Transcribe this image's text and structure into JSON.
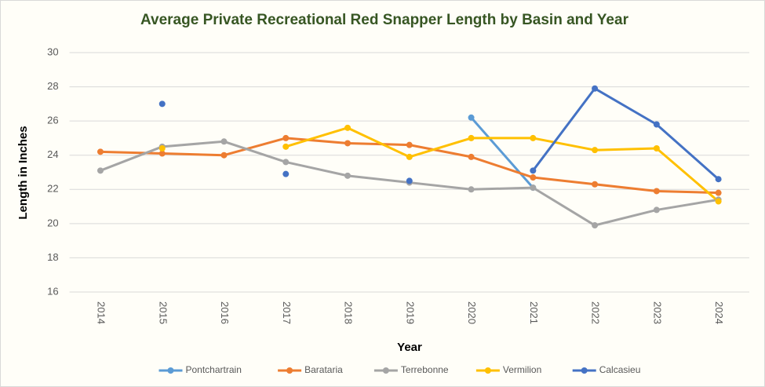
{
  "chart_data": {
    "type": "line",
    "title": "Average Private Recreational Red Snapper Length by Basin and Year",
    "xlabel": "Year",
    "ylabel": "Length in Inches",
    "categories": [
      "2014",
      "2015",
      "2016",
      "2017",
      "2018",
      "2019",
      "2020",
      "2021",
      "2022",
      "2023",
      "2024"
    ],
    "series": [
      {
        "name": "Pontchartrain",
        "color": "#5b9bd5",
        "values": [
          null,
          null,
          null,
          null,
          null,
          null,
          26.2,
          22.1,
          null,
          null,
          null
        ]
      },
      {
        "name": "Barataria",
        "color": "#ed7d31",
        "values": [
          24.2,
          24.1,
          24.0,
          25.0,
          24.7,
          24.6,
          23.9,
          22.7,
          22.3,
          21.9,
          21.8
        ]
      },
      {
        "name": "Terrebonne",
        "color": "#a5a5a5",
        "values": [
          23.1,
          24.5,
          24.8,
          23.6,
          22.8,
          22.4,
          22.0,
          22.1,
          19.9,
          20.8,
          21.4
        ]
      },
      {
        "name": "Vermilion",
        "color": "#ffc000",
        "values": [
          null,
          24.4,
          null,
          24.5,
          25.6,
          23.9,
          25.0,
          25.0,
          24.3,
          24.4,
          21.3
        ]
      },
      {
        "name": "Calcasieu",
        "color": "#4472c4",
        "values": [
          null,
          27.0,
          null,
          22.9,
          null,
          22.5,
          null,
          23.1,
          27.9,
          25.8,
          22.6
        ]
      }
    ],
    "ylim": [
      16,
      30
    ],
    "yticks": [
      16,
      18,
      20,
      22,
      24,
      26,
      28,
      30
    ],
    "grid": true,
    "legend": "bottom"
  }
}
